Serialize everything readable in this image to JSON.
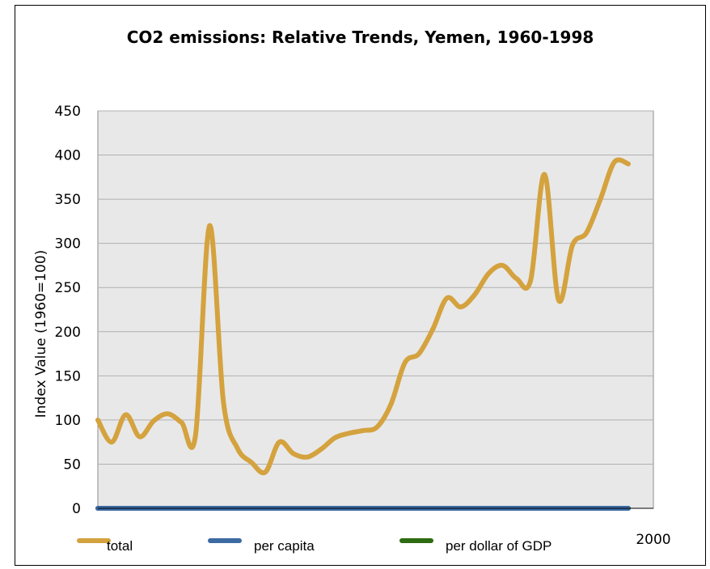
{
  "chart_data": {
    "type": "line",
    "title": "CO2 emissions: Relative Trends, Yemen, 1960-1998",
    "xlabel": "",
    "ylabel": "Index Value (1960=100)",
    "x_tick_labels": [
      "2000"
    ],
    "y_ticks": [
      0,
      50,
      100,
      150,
      200,
      250,
      300,
      350,
      400,
      450
    ],
    "ylim": [
      0,
      450
    ],
    "xlim": [
      1960,
      2000
    ],
    "grid": true,
    "legend_position": "bottom",
    "x": [
      1960,
      1961,
      1962,
      1963,
      1964,
      1965,
      1966,
      1967,
      1968,
      1969,
      1970,
      1971,
      1972,
      1973,
      1974,
      1975,
      1976,
      1977,
      1978,
      1979,
      1980,
      1981,
      1982,
      1983,
      1984,
      1985,
      1986,
      1987,
      1988,
      1989,
      1990,
      1991,
      1992,
      1993,
      1994,
      1995,
      1996,
      1997,
      1998
    ],
    "series": [
      {
        "name": "total",
        "color": "#d4a23e",
        "values": [
          100,
          75,
          106,
          81,
          99,
          107,
          97,
          83,
          320,
          120,
          68,
          52,
          41,
          75,
          62,
          58,
          67,
          80,
          85,
          88,
          92,
          118,
          165,
          175,
          203,
          238,
          228,
          242,
          266,
          275,
          260,
          258,
          378,
          236,
          298,
          312,
          350,
          392,
          390
        ]
      },
      {
        "name": "per capita",
        "color": "#3c6aa3",
        "values": [
          0,
          0,
          0,
          0,
          0,
          0,
          0,
          0,
          0,
          0,
          0,
          0,
          0,
          0,
          0,
          0,
          0,
          0,
          0,
          0,
          0,
          0,
          0,
          0,
          0,
          0,
          0,
          0,
          0,
          0,
          0,
          0,
          0,
          0,
          0,
          0,
          0,
          0,
          0
        ]
      },
      {
        "name": "per dollar of GDP",
        "color": "#2e6b12",
        "values": [
          0,
          0,
          0,
          0,
          0,
          0,
          0,
          0,
          0,
          0,
          0,
          0,
          0,
          0,
          0,
          0,
          0,
          0,
          0,
          0,
          0,
          0,
          0,
          0,
          0,
          0,
          0,
          0,
          0,
          0,
          0,
          0,
          0,
          0,
          0,
          0,
          0,
          0,
          0
        ]
      }
    ],
    "plot_background": "#e8e8e8",
    "gridline_color": "#b0b0b0"
  }
}
